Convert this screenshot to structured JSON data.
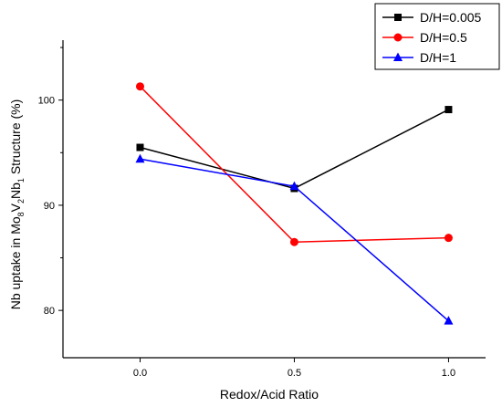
{
  "chart_data": {
    "type": "line",
    "title": "",
    "xlabel": "Redox/Acid Ratio",
    "ylabel_parts": {
      "a": "Nb uptake in Mo",
      "b": "8",
      "c": "V",
      "d": "2",
      "e": "Nb",
      "f": "1",
      "g": " Structure (%)"
    },
    "xlim": [
      -0.25,
      1.12
    ],
    "ylim": [
      75.5,
      105.7
    ],
    "x": [
      0.0,
      0.5,
      1.0
    ],
    "x_tick_labels": [
      "0.0",
      "0.5",
      "1.0"
    ],
    "y_ticks": [
      80,
      90,
      100
    ],
    "y_tick_labels": [
      "80",
      "90",
      "100"
    ],
    "legend_position": "top-right",
    "grid": false,
    "series": [
      {
        "name": "D/H=0.005",
        "values": [
          95.5,
          91.6,
          99.1
        ],
        "color": "#000000",
        "marker": "square"
      },
      {
        "name": "D/H=0.5",
        "values": [
          101.3,
          86.5,
          86.9
        ],
        "color": "#ff0000",
        "marker": "circle"
      },
      {
        "name": "D/H=1",
        "values": [
          94.4,
          91.8,
          79.0
        ],
        "color": "#0000ff",
        "marker": "triangle"
      }
    ]
  }
}
